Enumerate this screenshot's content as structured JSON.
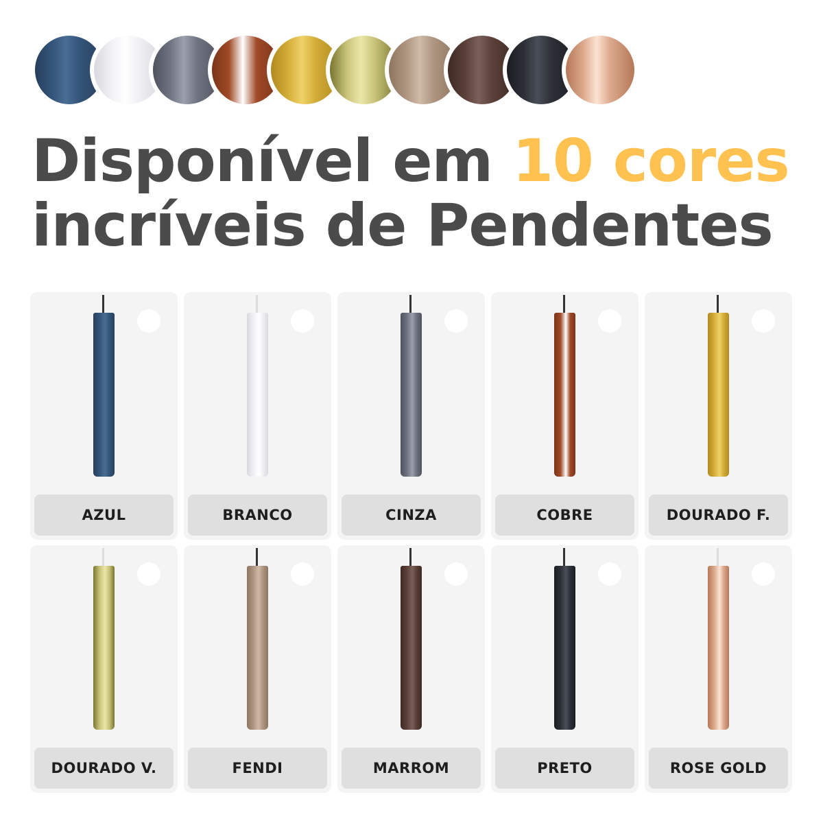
{
  "title": {
    "line1_prefix": "Disponível em ",
    "line1_accent": "10 cores",
    "line2": "incríveis de Pendentes",
    "text_color": "#4b4b4b",
    "accent_color": "#ffc14f"
  },
  "colors": [
    {
      "name": "AZUL",
      "base": "#34557a",
      "light": "#4a6d94",
      "dark": "#283f5c",
      "cable": "#333333"
    },
    {
      "name": "BRANCO",
      "base": "#f1f0f4",
      "light": "#ffffff",
      "dark": "#d9d8de",
      "cable": "#dddddd"
    },
    {
      "name": "CINZA",
      "base": "#6f7380",
      "light": "#9ca0ad",
      "dark": "#50535e",
      "cable": "#333333"
    },
    {
      "name": "COBRE",
      "base": "#a04a28",
      "light": "#ffffff",
      "dark": "#7a3418",
      "cable": "#333333"
    },
    {
      "name": "DOURADO F.",
      "base": "#d3ad38",
      "light": "#f0d26a",
      "dark": "#b08a1e",
      "cable": "#333333"
    },
    {
      "name": "DOURADO V.",
      "base": "#c9c47a",
      "light": "#ebe7a8",
      "dark": "#7a7530",
      "cable": "#dddddd"
    },
    {
      "name": "FENDI",
      "base": "#ad9580",
      "light": "#cfbba7",
      "dark": "#8d7560",
      "cable": "#333333"
    },
    {
      "name": "MARROM",
      "base": "#5a4038",
      "light": "#7a6058",
      "dark": "#3e2a24",
      "cable": "#333333"
    },
    {
      "name": "PRETO",
      "base": "#2d3038",
      "light": "#4a4e58",
      "dark": "#1b1d22",
      "cable": "#333333"
    },
    {
      "name": "ROSE GOLD",
      "base": "#dba88b",
      "light": "#fbe3d2",
      "dark": "#b57858",
      "cable": "#dddddd"
    }
  ]
}
